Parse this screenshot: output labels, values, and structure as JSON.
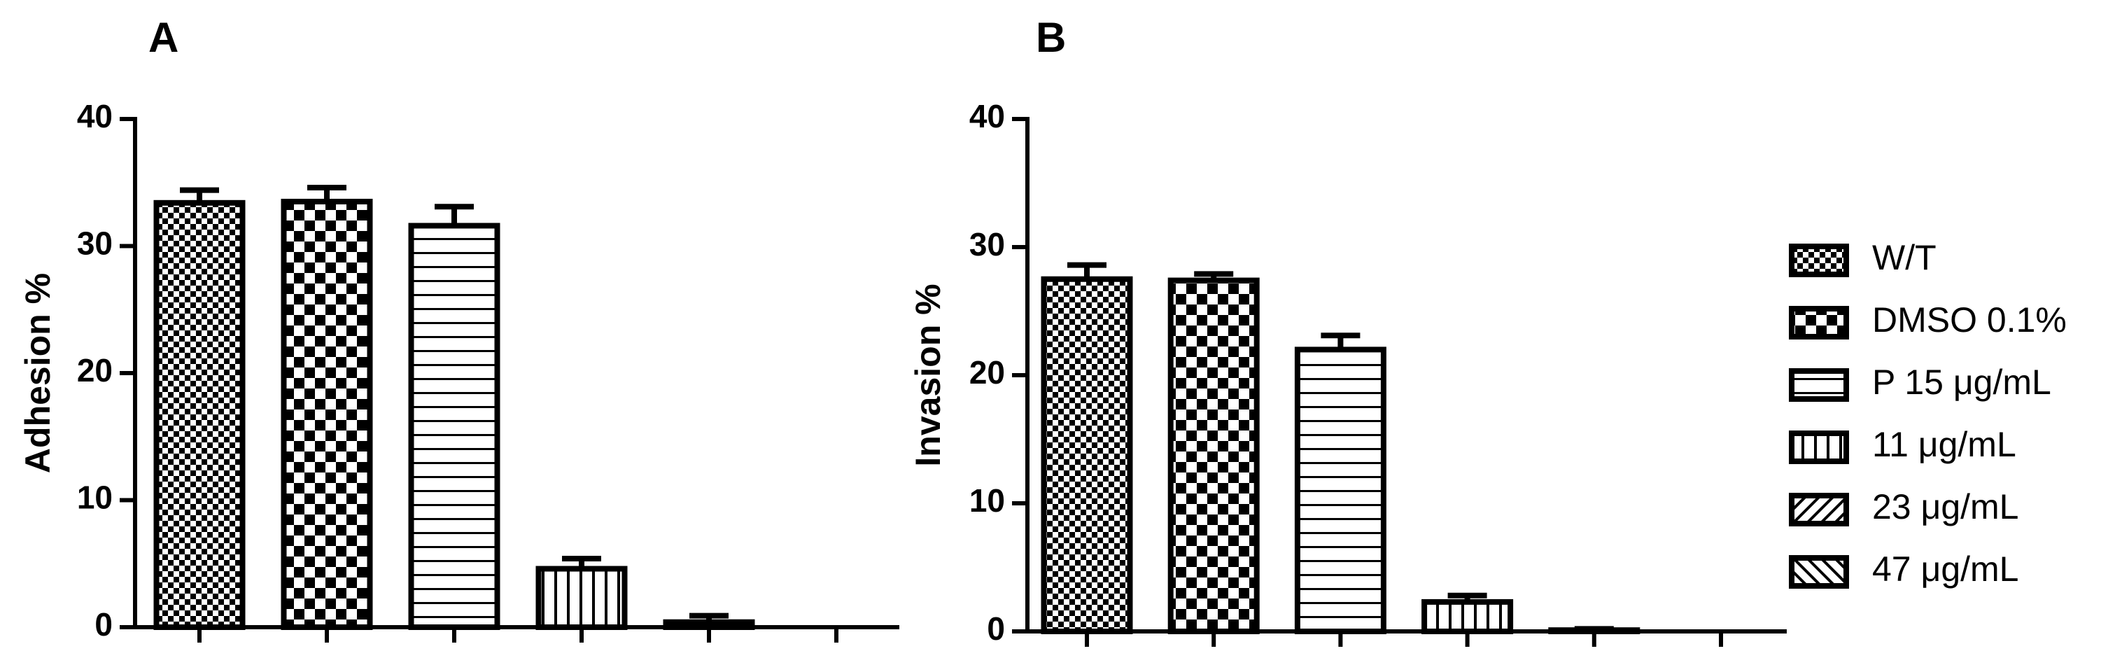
{
  "chart_data": [
    {
      "type": "bar",
      "title": "A",
      "ylabel": "Adhesion %",
      "values": [
        33.4,
        33.5,
        31.6,
        4.6,
        0.4,
        0
      ],
      "errors": [
        1.0,
        1.1,
        1.5,
        0.8,
        0.5,
        0
      ],
      "ylim": [
        0,
        40
      ],
      "yticks": [
        0,
        10,
        20,
        30,
        40
      ]
    },
    {
      "type": "bar",
      "title": "B",
      "ylabel": "Invasion %",
      "values": [
        27.5,
        27.4,
        22.0,
        2.3,
        0.1,
        0
      ],
      "errors": [
        1.1,
        0.5,
        1.1,
        0.5,
        0.1,
        0
      ],
      "ylim": [
        0,
        40
      ],
      "yticks": [
        0,
        10,
        20,
        30,
        40
      ]
    }
  ],
  "legend": {
    "entries": [
      {
        "name": "W/T",
        "pattern": "fine-checker"
      },
      {
        "name": "DMSO 0.1%",
        "pattern": "checker"
      },
      {
        "name": "P 15 μg/mL",
        "pattern": "hstripe"
      },
      {
        "name": "11 μg/mL",
        "pattern": "vstripe"
      },
      {
        "name": "23 μg/mL",
        "pattern": "diag"
      },
      {
        "name": "47 μg/mL",
        "pattern": "antidiag"
      }
    ]
  }
}
